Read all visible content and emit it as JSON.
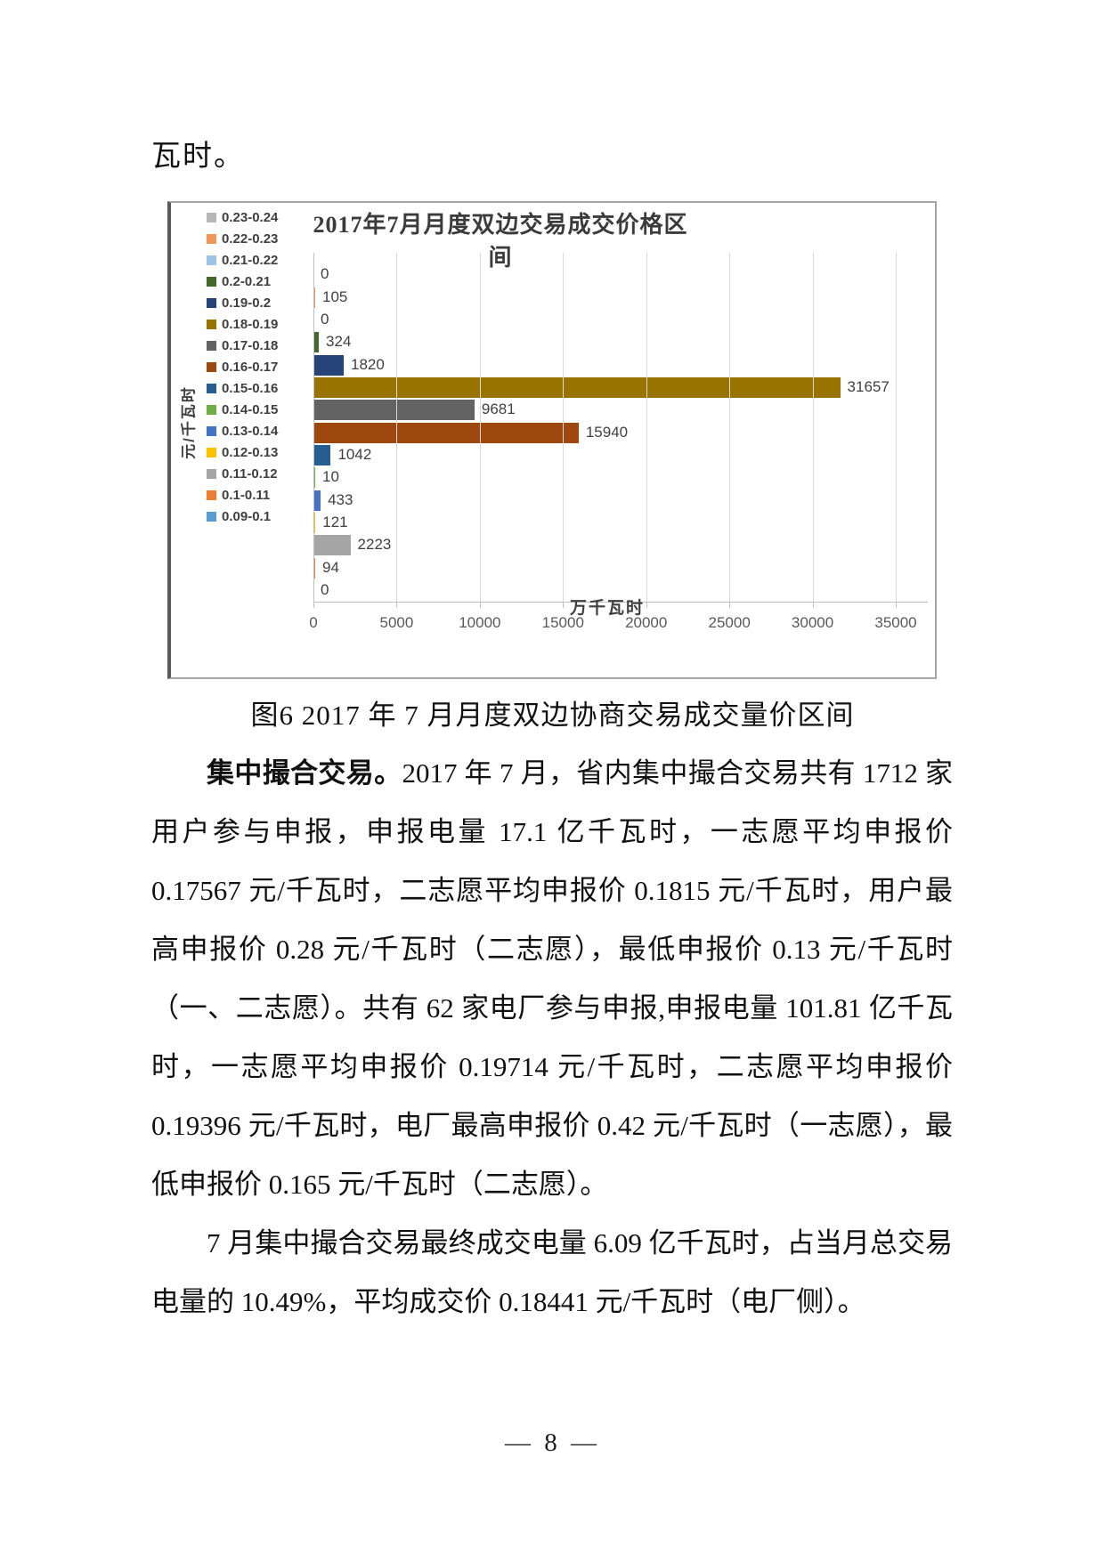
{
  "document": {
    "top_text": "瓦时。",
    "figure_caption": "图6  2017 年 7 月月度双边协商交易成交量价区间",
    "paragraphs": [
      {
        "lead": "集中撮合交易。",
        "text": "2017 年 7 月，省内集中撮合交易共有 1712 家用户参与申报，申报电量 17.1 亿千瓦时，一志愿平均申报价 0.17567 元/千瓦时，二志愿平均申报价 0.1815 元/千瓦时，用户最高申报价 0.28 元/千瓦时（二志愿），最低申报价 0.13 元/千瓦时（一、二志愿）。共有 62 家电厂参与申报,申报电量 101.81 亿千瓦时，一志愿平均申报价 0.19714 元/千瓦时，二志愿平均申报价 0.19396 元/千瓦时，电厂最高申报价 0.42 元/千瓦时（一志愿），最低申报价 0.165 元/千瓦时（二志愿）。"
      },
      {
        "lead": "",
        "text": "7 月集中撮合交易最终成交电量 6.09 亿千瓦时，占当月总交易电量的 10.49%，平均成交价 0.18441 元/千瓦时（电厂侧）。"
      }
    ],
    "page_number": "— 8 —"
  },
  "chart_data": {
    "type": "bar",
    "orientation": "horizontal",
    "title": "2017年7月月度双边交易成交价格区间",
    "xlabel": "万千瓦时",
    "ylabel": "元/千瓦时",
    "legend_position": "left",
    "grid": true,
    "value_labels": true,
    "xlim": [
      0,
      35000
    ],
    "x_ticks": [
      0,
      5000,
      10000,
      15000,
      20000,
      25000,
      30000,
      35000
    ],
    "categories": [
      "0.23-0.24",
      "0.22-0.23",
      "0.21-0.22",
      "0.2-0.21",
      "0.19-0.2",
      "0.18-0.19",
      "0.17-0.18",
      "0.16-0.17",
      "0.15-0.16",
      "0.14-0.15",
      "0.13-0.14",
      "0.12-0.13",
      "0.11-0.12",
      "0.1-0.11",
      "0.09-0.1"
    ],
    "values": [
      0,
      105,
      0,
      324,
      1820,
      31657,
      9681,
      15940,
      1042,
      10,
      433,
      121,
      2223,
      94,
      0
    ],
    "colors": [
      "#b7b7b7",
      "#f1975a",
      "#9dc3e6",
      "#43682b",
      "#264478",
      "#997300",
      "#636363",
      "#9e480e",
      "#255e91",
      "#70ad47",
      "#4472c4",
      "#ffc000",
      "#a5a5a5",
      "#ed7d31",
      "#5b9bd5"
    ],
    "gridline_color": "#d9d9d9",
    "axis_color": "#bfbfbf",
    "label_color": "#404040"
  }
}
